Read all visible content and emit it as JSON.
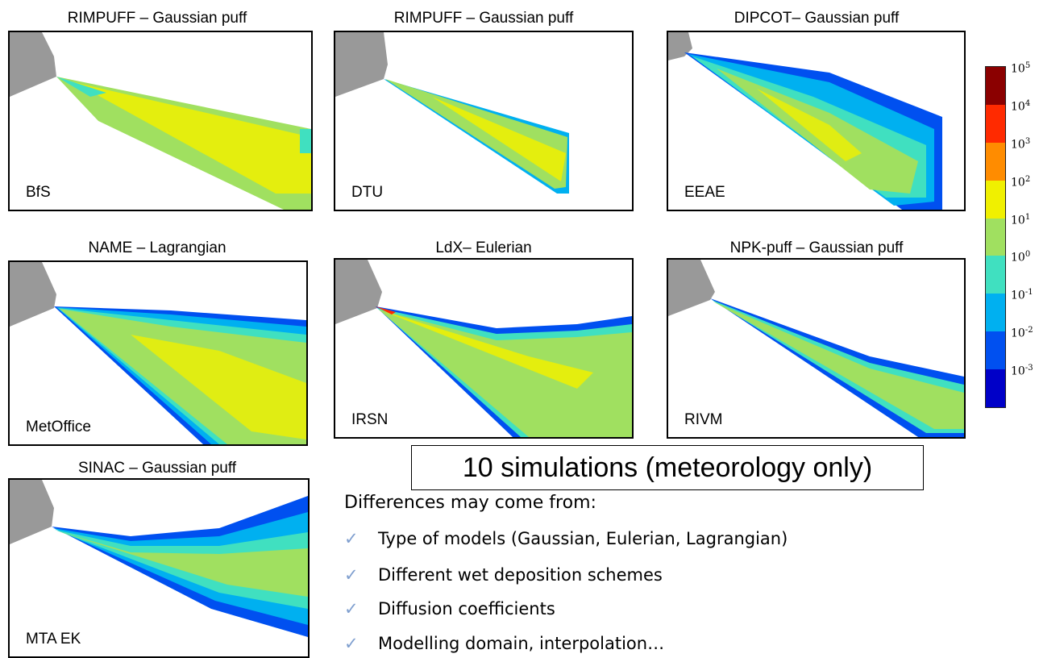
{
  "panels": [
    {
      "title": "RIMPUFF – Gaussian puff",
      "label": "BfS"
    },
    {
      "title": "RIMPUFF – Gaussian puff",
      "label": "DTU"
    },
    {
      "title": "DIPCOT– Gaussian puff",
      "label": "EEAE"
    },
    {
      "title": "NAME – Lagrangian",
      "label": "MetOffice"
    },
    {
      "title": "LdX– Eulerian",
      "label": "IRSN"
    },
    {
      "title": "NPK-puff – Gaussian puff",
      "label": "RIVM"
    },
    {
      "title": "SINAC – Gaussian puff",
      "label": "MTA EK"
    }
  ],
  "colorbar": {
    "exponents": [
      "5",
      "4",
      "3",
      "2",
      "1",
      "0",
      "-1",
      "-2",
      "-3"
    ],
    "base": "10",
    "colors": [
      "#8b0000",
      "#ff2a00",
      "#ff8c00",
      "#f0f000",
      "#a0e060",
      "#40e0c0",
      "#00b0f0",
      "#0050f0",
      "#0000c8"
    ]
  },
  "headline": "10 simulations (meteorology only)",
  "intro": "Differences may come from:",
  "bullets": [
    "Type of models (Gaussian, Eulerian, Lagrangian)",
    "Different wet deposition schemes",
    "Diffusion coefficients",
    "Modelling domain, interpolation…"
  ],
  "bullet_icon": "check-icon"
}
